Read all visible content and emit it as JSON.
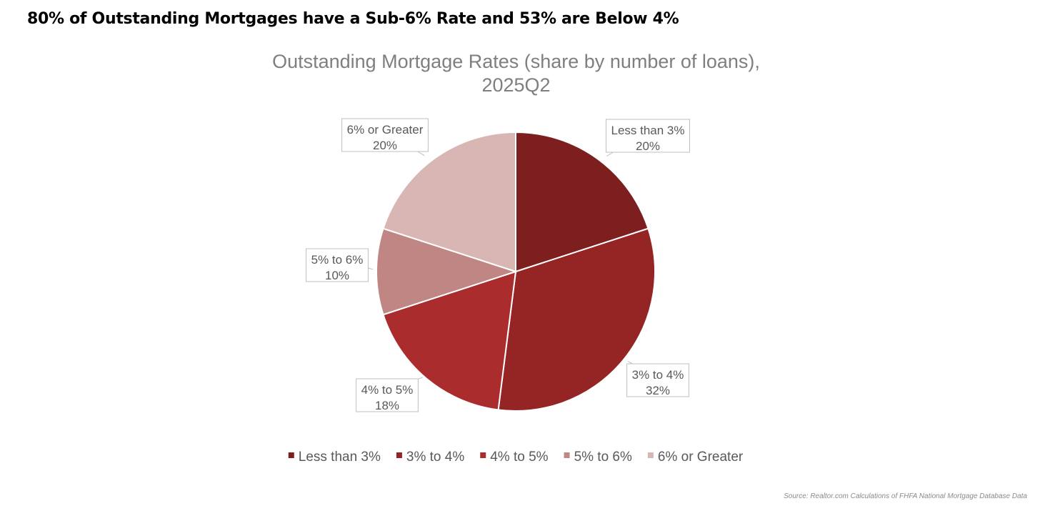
{
  "headline": "80% of Outstanding Mortgages have a Sub-6% Rate and 53% are Below 4%",
  "chart_data": {
    "type": "pie",
    "title": "Outstanding Mortgage Rates (share by number of loans), 2025Q2",
    "categories": [
      "Less than 3%",
      "3% to 4%",
      "4% to 5%",
      "5% to 6%",
      "6% or Greater"
    ],
    "values": [
      20,
      32,
      18,
      10,
      20
    ],
    "value_labels": [
      "20%",
      "32%",
      "18%",
      "10%",
      "20%"
    ],
    "colors": [
      "#7e1f1f",
      "#952424",
      "#aa2c2c",
      "#c08684",
      "#d8b6b3"
    ],
    "legend": "bottom"
  },
  "source": "Source: Realtor.com  Calculations of FHFA National Mortgage Database Data"
}
